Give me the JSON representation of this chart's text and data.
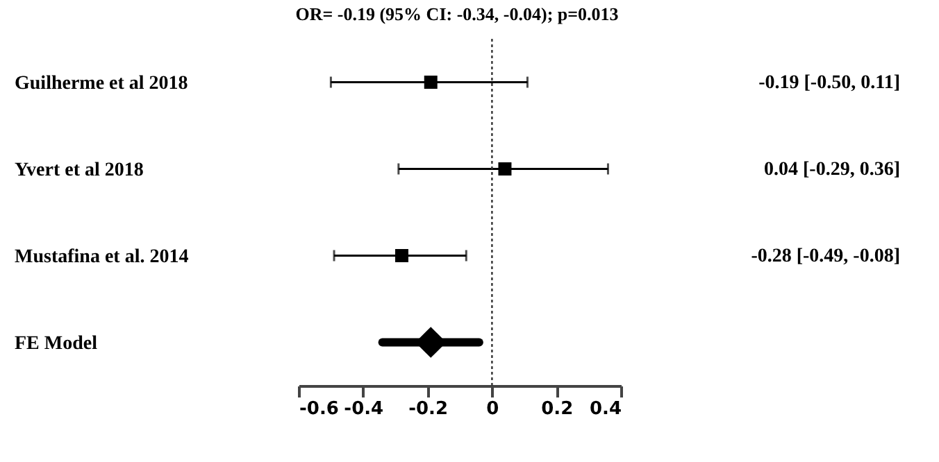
{
  "chart_data": {
    "type": "scatter",
    "orientation": "horizontal",
    "title": "OR= -0.19 (95% CI: -0.34, -0.04); p=0.013",
    "categories": [
      "Guilherme et al 2018",
      "Yvert et al 2018",
      "Mustafina et al. 2014",
      "FE Model"
    ],
    "series": [
      {
        "color": "#000000",
        "marker": "square",
        "values": [
          -0.19,
          0.04,
          -0.28,
          null
        ],
        "errors": [
          [
            -0.5,
            0.11
          ],
          [
            -0.29,
            0.36
          ],
          [
            -0.49,
            -0.08
          ],
          null
        ],
        "value_labels": [
          "-0.19 [-0.50, 0.11]",
          "0.04 [-0.29, 0.36]",
          "-0.28 [-0.49, -0.08]",
          null
        ]
      },
      {
        "color": "#000000",
        "marker": "diamond",
        "values": [
          null,
          null,
          null,
          -0.19
        ],
        "errors": [
          null,
          null,
          null,
          [
            -0.34,
            -0.04
          ]
        ]
      }
    ],
    "xlim": [
      -0.6,
      0.4
    ],
    "xticks": [
      -0.6,
      -0.4,
      -0.2,
      0,
      0.2,
      0.4
    ],
    "ref_lines": [
      {
        "axis": "x",
        "value": 0,
        "line_style": "dotted"
      }
    ],
    "grid": false
  }
}
